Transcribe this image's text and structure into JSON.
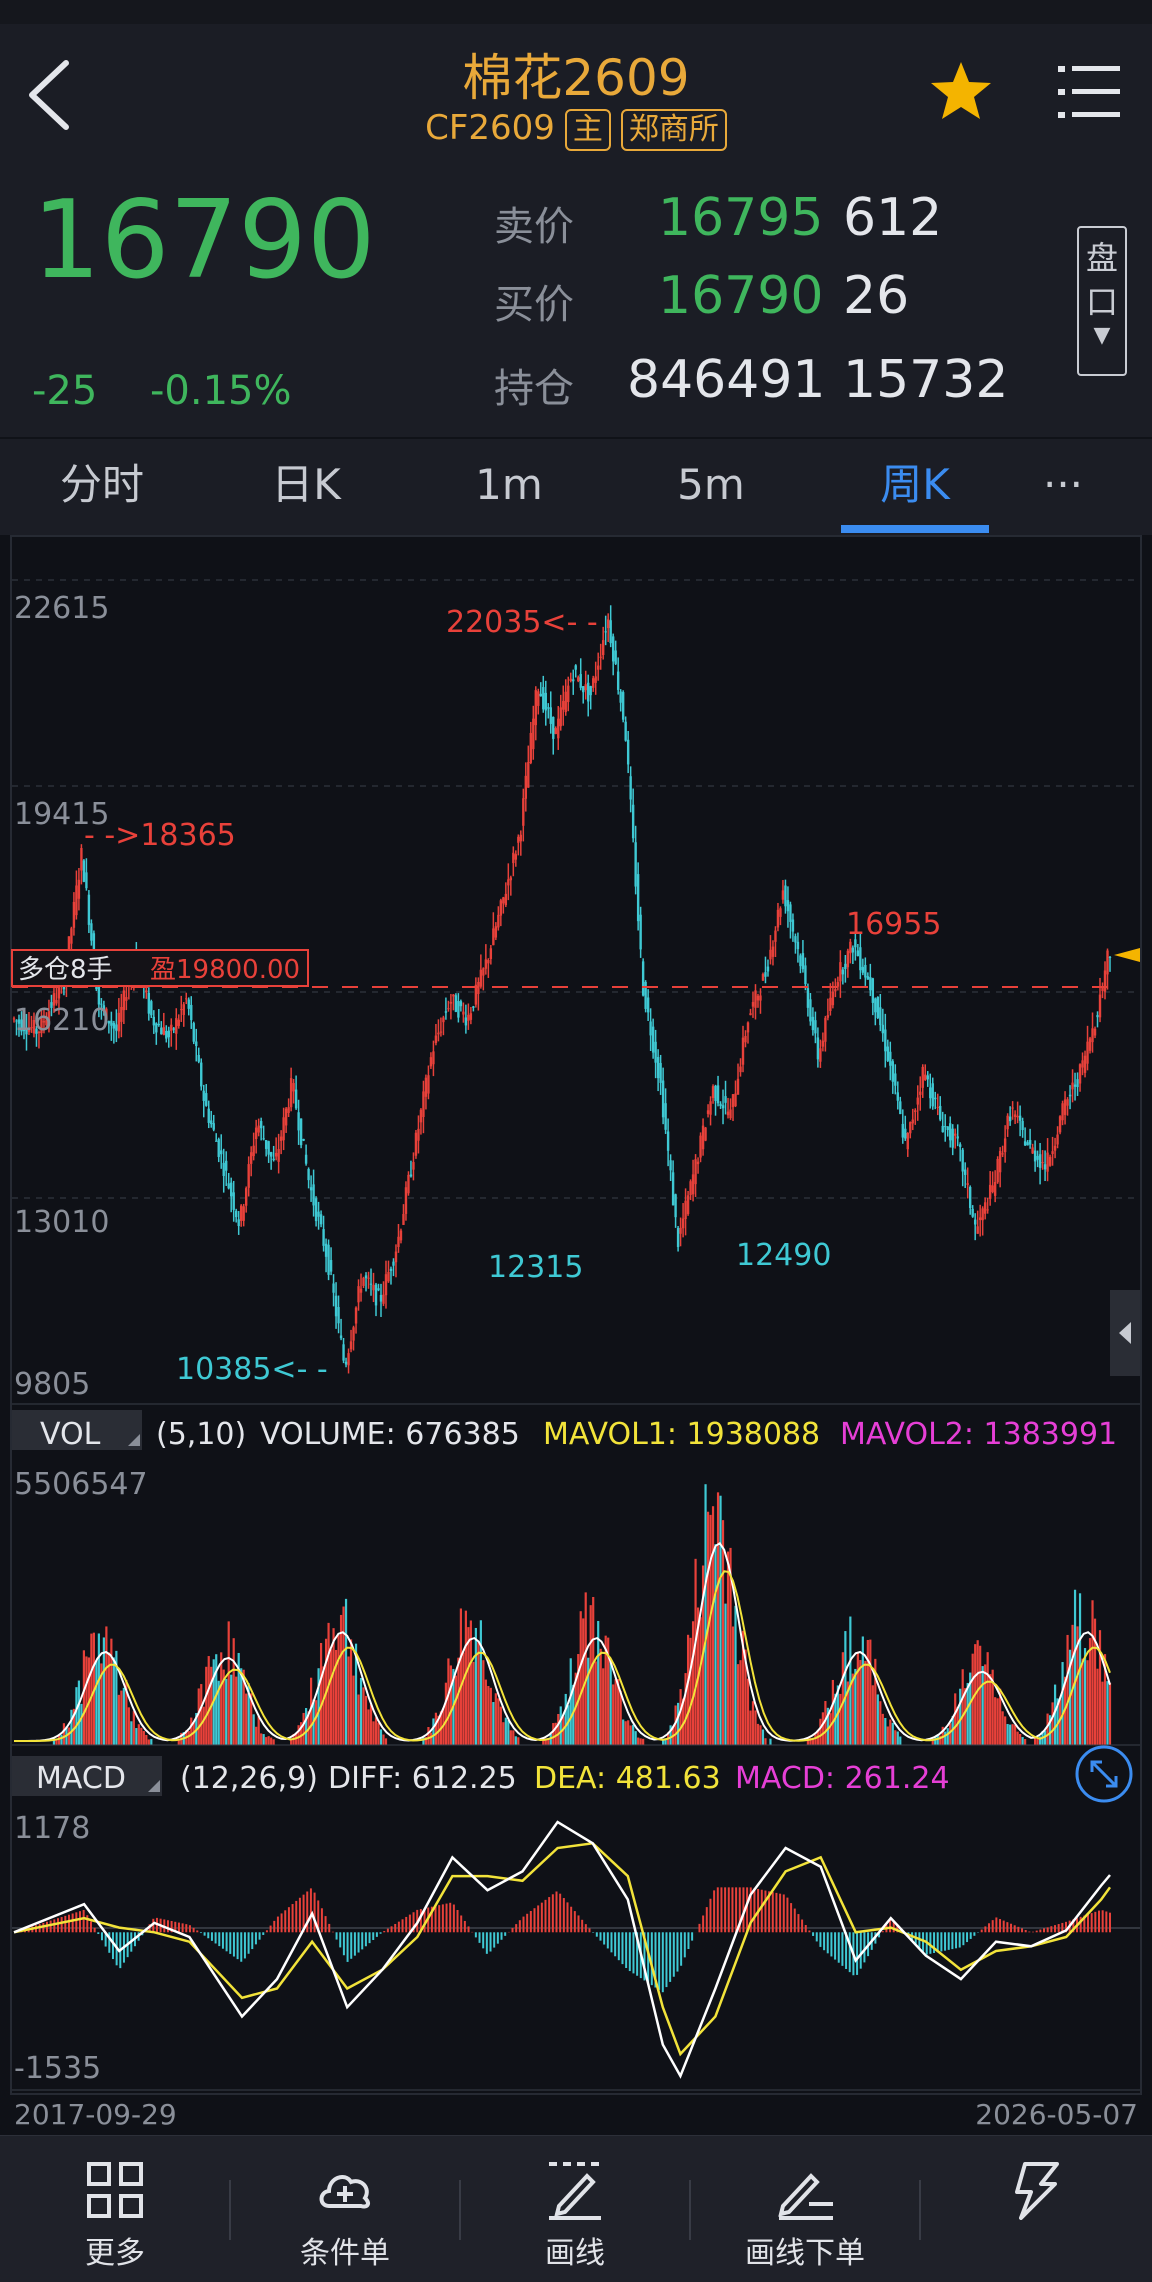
{
  "header": {
    "title": "棉花2609",
    "contract": "CF2609",
    "tag_main": "主",
    "tag_exchange": "郑商所",
    "icons": {
      "back": "back-chevron-icon",
      "star": "favorite-star-icon",
      "menu": "menu-list-icon"
    },
    "colors": {
      "accent": "#e9a93a",
      "star": "#f4b400"
    }
  },
  "quote": {
    "last_price": "16790",
    "change": "-25",
    "change_pct": "-0.15%",
    "ask_label": "卖价",
    "ask_price": "16795",
    "ask_volume": "612",
    "bid_label": "买价",
    "bid_price": "16790",
    "bid_volume": "26",
    "oi_label": "持仓",
    "open_interest": "846491",
    "oi_change": "15732",
    "pankou_label_1": "盘",
    "pankou_label_2": "口",
    "colors": {
      "down": "#3fb65d",
      "up": "#e8413a"
    }
  },
  "tabs": [
    {
      "label": "分时",
      "active": false
    },
    {
      "label": "日K",
      "active": false
    },
    {
      "label": "1m",
      "active": false
    },
    {
      "label": "5m",
      "active": false
    },
    {
      "label": "周K",
      "active": true
    },
    {
      "label": "···",
      "active": false
    }
  ],
  "chart_data": [
    {
      "type": "candlestick",
      "name": "price",
      "y_ticks": [
        "22615",
        "19415",
        "16210",
        "13010",
        "9805"
      ],
      "ylim": [
        9805,
        22615
      ],
      "x_range": [
        "2017-09-29",
        "2026-05-07"
      ],
      "annotations": [
        {
          "text": "22035<- -",
          "value": 22035
        },
        {
          "text": "- ->18365",
          "value": 18365
        },
        {
          "text": "16955",
          "value": 16955
        },
        {
          "text": "12315",
          "value": 12315
        },
        {
          "text": "12490",
          "value": 12490
        },
        {
          "text": "10385<- -",
          "value": 10385
        }
      ],
      "position_label": "多仓8手",
      "position_profit": "盈19800.00",
      "position_price": 16300,
      "trend_points": [
        [
          0,
          15800
        ],
        [
          3,
          15600
        ],
        [
          6,
          16400
        ],
        [
          8,
          18365
        ],
        [
          10,
          16000
        ],
        [
          12,
          15600
        ],
        [
          14,
          16800
        ],
        [
          16,
          15800
        ],
        [
          18,
          15500
        ],
        [
          20,
          16100
        ],
        [
          22,
          14500
        ],
        [
          24,
          13600
        ],
        [
          26,
          12600
        ],
        [
          28,
          14200
        ],
        [
          30,
          13500
        ],
        [
          32,
          14800
        ],
        [
          34,
          13200
        ],
        [
          36,
          12100
        ],
        [
          38,
          10385
        ],
        [
          40,
          11800
        ],
        [
          42,
          11400
        ],
        [
          44,
          12300
        ],
        [
          46,
          13800
        ],
        [
          48,
          15300
        ],
        [
          50,
          16100
        ],
        [
          52,
          15800
        ],
        [
          54,
          16600
        ],
        [
          56,
          17600
        ],
        [
          58,
          18700
        ],
        [
          60,
          21000
        ],
        [
          62,
          20200
        ],
        [
          64,
          21200
        ],
        [
          66,
          20800
        ],
        [
          68,
          22035
        ],
        [
          70,
          20300
        ],
        [
          72,
          16300
        ],
        [
          74,
          14800
        ],
        [
          76,
          12315
        ],
        [
          78,
          13500
        ],
        [
          80,
          14700
        ],
        [
          82,
          14300
        ],
        [
          84,
          15800
        ],
        [
          86,
          16500
        ],
        [
          88,
          17800
        ],
        [
          90,
          16700
        ],
        [
          92,
          15200
        ],
        [
          94,
          16400
        ],
        [
          96,
          16955
        ],
        [
          98,
          16300
        ],
        [
          100,
          15200
        ],
        [
          102,
          13800
        ],
        [
          104,
          15000
        ],
        [
          106,
          14200
        ],
        [
          108,
          13800
        ],
        [
          110,
          12490
        ],
        [
          112,
          13200
        ],
        [
          114,
          14400
        ],
        [
          116,
          13800
        ],
        [
          118,
          13500
        ],
        [
          120,
          14400
        ],
        [
          122,
          15000
        ],
        [
          124,
          16000
        ],
        [
          125,
          16790
        ]
      ]
    },
    {
      "type": "bar",
      "name": "volume",
      "indicator_label": "VOL",
      "params": "(5,10)",
      "volume_text": "VOLUME: 676385",
      "mavol1_text": "MAVOL1: 1938088",
      "mavol2_text": "MAVOL2: 1383991",
      "y_max_label": "5506547",
      "clusters": [
        {
          "center": 10,
          "height": 0.45
        },
        {
          "center": 24,
          "height": 0.42
        },
        {
          "center": 37,
          "height": 0.55
        },
        {
          "center": 52,
          "height": 0.52
        },
        {
          "center": 66,
          "height": 0.52
        },
        {
          "center": 80,
          "height": 1.0
        },
        {
          "center": 96,
          "height": 0.45
        },
        {
          "center": 110,
          "height": 0.35
        },
        {
          "center": 122,
          "height": 0.55
        }
      ],
      "colors": {
        "mavol1": "#ffffff",
        "mavol2": "#f2e33a",
        "label_mavol1": "#f2e33a",
        "label_mavol2": "#e63fd6"
      }
    },
    {
      "type": "line",
      "name": "macd",
      "indicator_label": "MACD",
      "params": "(12,26,9)",
      "diff_text": "DIFF: 612.25",
      "dea_text": "DEA: 481.63",
      "macd_text": "MACD: 261.24",
      "y_max_label": "1178",
      "y_min_label": "-1535",
      "ylim": [
        -1535,
        1178
      ],
      "diff": [
        [
          0,
          0
        ],
        [
          8,
          300
        ],
        [
          12,
          -200
        ],
        [
          16,
          100
        ],
        [
          20,
          -50
        ],
        [
          26,
          -900
        ],
        [
          30,
          -500
        ],
        [
          34,
          200
        ],
        [
          38,
          -800
        ],
        [
          42,
          -400
        ],
        [
          46,
          100
        ],
        [
          50,
          800
        ],
        [
          54,
          450
        ],
        [
          58,
          650
        ],
        [
          62,
          1178
        ],
        [
          66,
          950
        ],
        [
          70,
          350
        ],
        [
          74,
          -1200
        ],
        [
          76,
          -1535
        ],
        [
          80,
          -600
        ],
        [
          84,
          400
        ],
        [
          88,
          900
        ],
        [
          92,
          700
        ],
        [
          96,
          -300
        ],
        [
          100,
          150
        ],
        [
          104,
          -250
        ],
        [
          108,
          -500
        ],
        [
          112,
          -100
        ],
        [
          116,
          -150
        ],
        [
          120,
          20
        ],
        [
          124,
          500
        ],
        [
          125,
          612
        ]
      ],
      "dea": [
        [
          0,
          0
        ],
        [
          8,
          150
        ],
        [
          12,
          50
        ],
        [
          16,
          0
        ],
        [
          20,
          -100
        ],
        [
          26,
          -700
        ],
        [
          30,
          -600
        ],
        [
          34,
          -100
        ],
        [
          38,
          -600
        ],
        [
          42,
          -400
        ],
        [
          46,
          -50
        ],
        [
          50,
          600
        ],
        [
          54,
          600
        ],
        [
          58,
          550
        ],
        [
          62,
          900
        ],
        [
          66,
          950
        ],
        [
          70,
          600
        ],
        [
          74,
          -800
        ],
        [
          76,
          -1300
        ],
        [
          80,
          -900
        ],
        [
          84,
          100
        ],
        [
          88,
          650
        ],
        [
          92,
          800
        ],
        [
          96,
          0
        ],
        [
          100,
          50
        ],
        [
          104,
          -100
        ],
        [
          108,
          -400
        ],
        [
          112,
          -200
        ],
        [
          116,
          -150
        ],
        [
          120,
          -50
        ],
        [
          124,
          350
        ],
        [
          125,
          481
        ]
      ],
      "colors": {
        "diff": "#ffffff",
        "dea": "#f2e33a",
        "label_macd": "#e63fd6"
      }
    }
  ],
  "axis": {
    "start_date": "2017-09-29",
    "end_date": "2026-05-07"
  },
  "bottom_nav": [
    {
      "label": "更多",
      "icon": "grid-icon"
    },
    {
      "label": "条件单",
      "icon": "cloud-plus-icon"
    },
    {
      "label": "画线",
      "icon": "draw-line-icon"
    },
    {
      "label": "画线下单",
      "icon": "draw-order-icon"
    },
    {
      "label": "",
      "icon": "lightning-icon"
    }
  ]
}
